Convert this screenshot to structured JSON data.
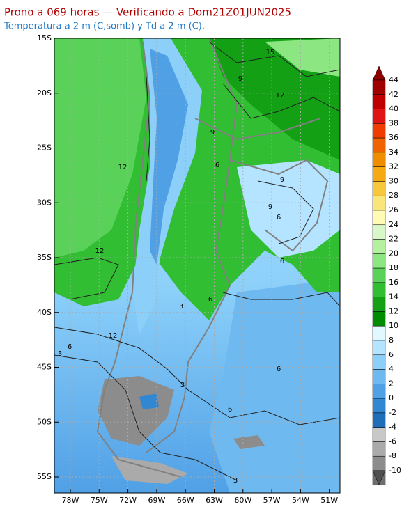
{
  "map": {
    "title": "Prono a 069 horas — Verificando a Dom21Z01JUN2025",
    "subtitle": "Temperatura a 2 m (C,somb) y Td a 2 m (C).",
    "lat_labels": [
      "15S",
      "20S",
      "25S",
      "30S",
      "35S",
      "40S",
      "45S",
      "50S",
      "55S"
    ],
    "lon_labels": [
      "78W",
      "75W",
      "72W",
      "69W",
      "66W",
      "63W",
      "60W",
      "57W",
      "54W",
      "51W"
    ],
    "contour_labels": [
      "15",
      "12",
      "9",
      "9",
      "12",
      "6",
      "9",
      "9",
      "6",
      "12",
      "6",
      "3",
      "6",
      "12",
      "6",
      "3",
      "6",
      "3",
      "6",
      "3"
    ],
    "colorbar": {
      "ticks": [
        44,
        42,
        40,
        38,
        36,
        34,
        32,
        30,
        28,
        26,
        24,
        22,
        20,
        18,
        16,
        14,
        12,
        10,
        8,
        6,
        4,
        2,
        0,
        -2,
        -4,
        -6,
        -8,
        -10
      ],
      "colors": [
        "#8c0000",
        "#a00000",
        "#c00000",
        "#e01414",
        "#f03c00",
        "#f06400",
        "#f08c00",
        "#f5aa14",
        "#f8c83c",
        "#fae678",
        "#fffab4",
        "#d8f8c8",
        "#b4f0a0",
        "#8ce682",
        "#5ad25a",
        "#32be32",
        "#14a014",
        "#008c00",
        "#e0f8ff",
        "#b4e4ff",
        "#8cd0fa",
        "#6eb9f0",
        "#50a0e6",
        "#3287d2",
        "#1e6eb9",
        "#c8c8c8",
        "#aaaaaa",
        "#8c8c8c",
        "#6e6e6e",
        "#505050"
      ]
    }
  }
}
